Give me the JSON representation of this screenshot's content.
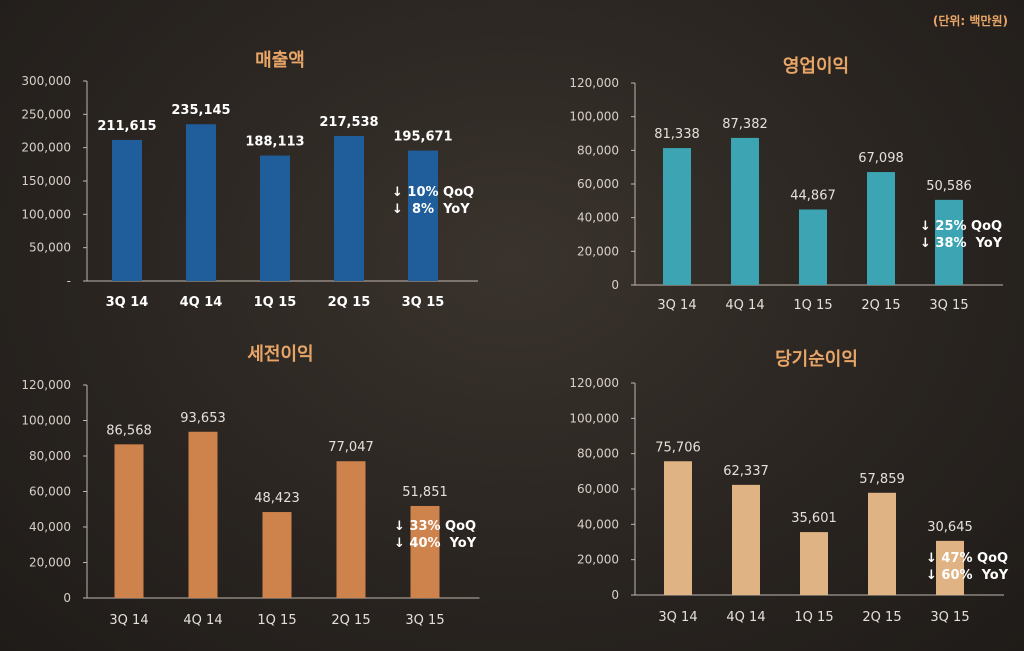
{
  "unit_note": "(단위: 백만원)",
  "chart_data": [
    {
      "type": "bar",
      "title": "매출액",
      "categories": [
        "3Q 14",
        "4Q 14",
        "1Q 15",
        "2Q 15",
        "3Q 15"
      ],
      "values": [
        211615,
        235145,
        188113,
        217538,
        195671
      ],
      "value_labels": [
        "211,615",
        "235,145",
        "188,113",
        "217,538",
        "195,671"
      ],
      "yticks": [
        "-",
        "50,000",
        "100,000",
        "150,000",
        "200,000",
        "250,000",
        "300,000"
      ],
      "ylim": [
        0,
        300000
      ],
      "color": "#1f5e9a",
      "change": {
        "qoq": "↓ 10% QoQ",
        "yoy": "↓  8%  YoY"
      }
    },
    {
      "type": "bar",
      "title": "영업이익",
      "categories": [
        "3Q 14",
        "4Q 14",
        "1Q 15",
        "2Q 15",
        "3Q 15"
      ],
      "values": [
        81338,
        87382,
        44867,
        67098,
        50586
      ],
      "value_labels": [
        "81,338",
        "87,382",
        "44,867",
        "67,098",
        "50,586"
      ],
      "yticks": [
        "0",
        "20,000",
        "40,000",
        "60,000",
        "80,000",
        "100,000",
        "120,000"
      ],
      "ylim": [
        0,
        120000
      ],
      "color": "#3ca4b3",
      "change": {
        "qoq": "↓ 25% QoQ",
        "yoy": "↓ 38%  YoY"
      }
    },
    {
      "type": "bar",
      "title": "세전이익",
      "categories": [
        "3Q 14",
        "4Q 14",
        "1Q 15",
        "2Q 15",
        "3Q 15"
      ],
      "values": [
        86568,
        93653,
        48423,
        77047,
        51851
      ],
      "value_labels": [
        "86,568",
        "93,653",
        "48,423",
        "77,047",
        "51,851"
      ],
      "yticks": [
        "0",
        "20,000",
        "40,000",
        "60,000",
        "80,000",
        "100,000",
        "120,000"
      ],
      "ylim": [
        0,
        120000
      ],
      "color": "#cf834c",
      "change": {
        "qoq": "↓ 33% QoQ",
        "yoy": "↓ 40%  YoY"
      }
    },
    {
      "type": "bar",
      "title": "당기순이익",
      "categories": [
        "3Q 14",
        "4Q 14",
        "1Q 15",
        "2Q 15",
        "3Q 15"
      ],
      "values": [
        75706,
        62337,
        35601,
        57859,
        30645
      ],
      "value_labels": [
        "75,706",
        "62,337",
        "35,601",
        "57,859",
        "30,645"
      ],
      "yticks": [
        "0",
        "20,000",
        "40,000",
        "60,000",
        "80,000",
        "100,000",
        "120,000"
      ],
      "ylim": [
        0,
        120000
      ],
      "color": "#e0b384",
      "change": {
        "qoq": "↓ 47% QoQ",
        "yoy": "↓ 60%  YoY"
      }
    }
  ]
}
